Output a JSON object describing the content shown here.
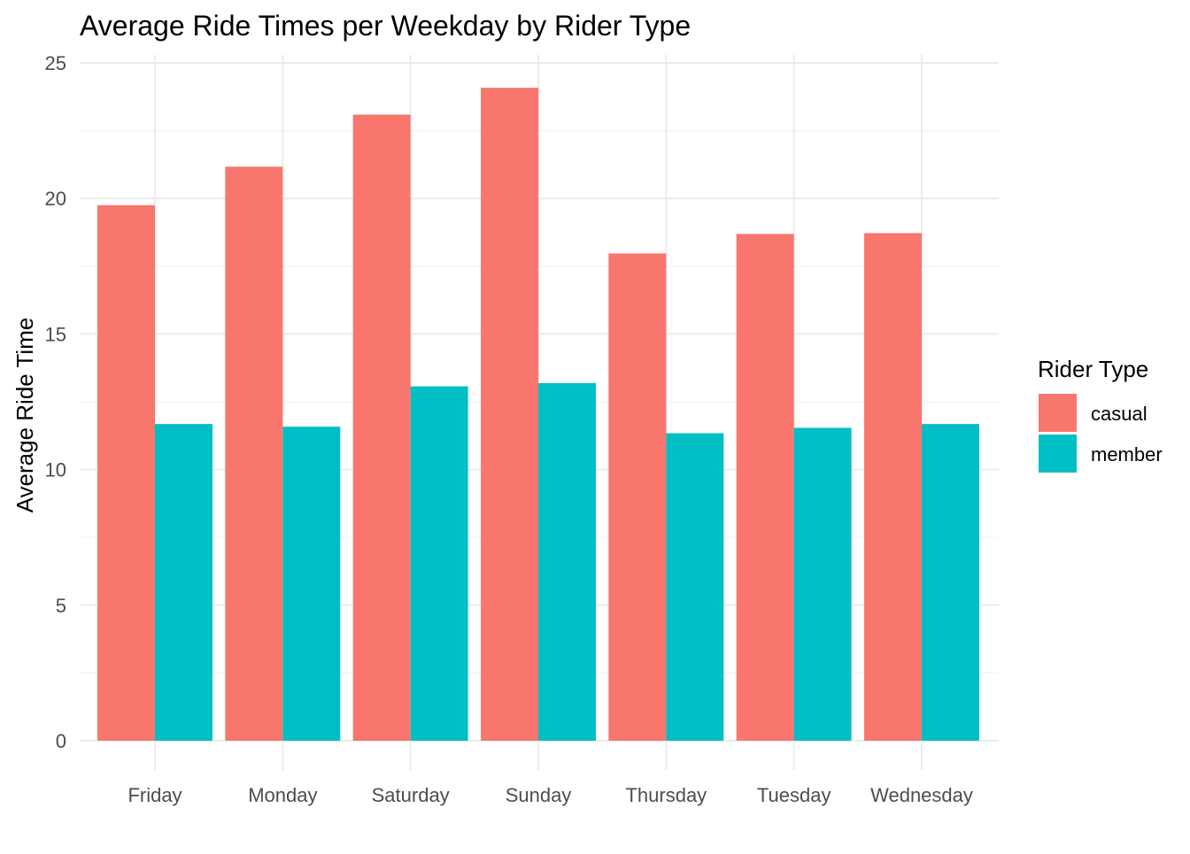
{
  "chart_data": {
    "type": "bar",
    "title": "Average Ride Times per Weekday by Rider Type",
    "xlabel": "",
    "ylabel": "Average Ride Time",
    "categories": [
      "Friday",
      "Monday",
      "Saturday",
      "Sunday",
      "Thursday",
      "Tuesday",
      "Wednesday"
    ],
    "series": [
      {
        "name": "casual",
        "color": "#F8766D",
        "values": [
          19.75,
          21.17,
          23.09,
          24.08,
          17.97,
          18.69,
          18.72
        ]
      },
      {
        "name": "member",
        "color": "#00BFC4",
        "values": [
          11.68,
          11.58,
          13.07,
          13.19,
          11.34,
          11.54,
          11.68
        ]
      }
    ],
    "ylim": [
      0,
      25
    ],
    "yticks": [
      "0",
      "5",
      "10",
      "15",
      "20",
      "25"
    ],
    "grid": true,
    "legend": {
      "title": "Rider Type",
      "placement": "right"
    }
  }
}
